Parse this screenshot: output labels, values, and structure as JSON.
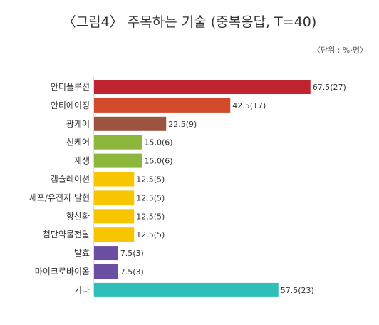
{
  "chart_data": {
    "type": "bar",
    "orientation": "horizontal",
    "title": "〈그림4〉 주목하는 기술 (중복응답, T=40)",
    "unit_note": "〈단위 : %·명〉",
    "xlabel": "",
    "ylabel": "",
    "xlim": [
      0,
      80
    ],
    "grid": false,
    "legend": "none",
    "categories": [
      "안티폴루션",
      "안티에이징",
      "광케어",
      "선케어",
      "재생",
      "캡슐레이션",
      "세포/유전자 발현",
      "항산화",
      "첨단약물전달",
      "발효",
      "마이크로바이옴",
      "기타"
    ],
    "values": [
      67.5,
      42.5,
      22.5,
      15.0,
      15.0,
      12.5,
      12.5,
      12.5,
      12.5,
      7.5,
      7.5,
      57.5
    ],
    "data_labels": [
      "67.5(27)",
      "42.5(17)",
      "22.5(9)",
      "15.0(6)",
      "15.0(6)",
      "12.5(5)",
      "12.5(5)",
      "12.5(5)",
      "12.5(5)",
      "7.5(3)",
      "7.5(3)",
      "57.5(23)"
    ],
    "colors": [
      "#c0252f",
      "#d24a2b",
      "#9a5440",
      "#8cb63c",
      "#8cb63c",
      "#f7c600",
      "#f7c600",
      "#f7c600",
      "#f7c600",
      "#6b4fa3",
      "#6b4fa3",
      "#2ebfb8"
    ]
  }
}
